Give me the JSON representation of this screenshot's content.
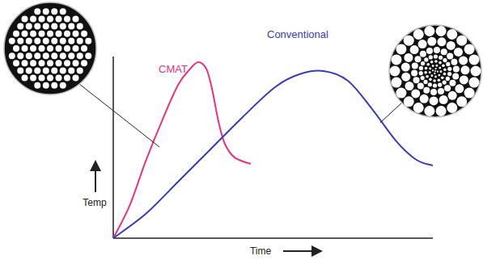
{
  "chart_data": {
    "type": "line",
    "xlabel": "Time",
    "ylabel": "Temp",
    "xlim": [
      0,
      100
    ],
    "ylim": [
      0,
      100
    ],
    "grid": false,
    "tick_labels": false,
    "series": [
      {
        "name": "CMAT",
        "color": "#e8337f",
        "x": [
          0,
          5.1,
          10.1,
          15.2,
          20.3,
          24.1,
          26.6,
          29.1,
          30.9,
          32.9,
          34.9,
          38,
          43
        ],
        "values": [
          0,
          17.8,
          42.2,
          64.4,
          84.4,
          93.3,
          96.9,
          93.3,
          82.2,
          64.4,
          52,
          44.4,
          40.9
        ]
      },
      {
        "name": "Conventional",
        "color": "#3a3ab8",
        "x": [
          0,
          10.1,
          20.3,
          30.4,
          40.5,
          50.6,
          58.2,
          65.8,
          73.4,
          81,
          88.6,
          94.9,
          100
        ],
        "values": [
          0,
          13.3,
          31.1,
          48.9,
          66.7,
          83.1,
          90.2,
          92,
          86.7,
          71.1,
          53.3,
          43.1,
          40
        ]
      }
    ]
  }
}
